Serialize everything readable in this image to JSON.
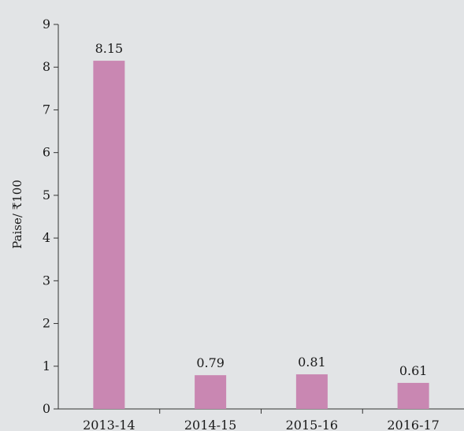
{
  "chart_data": {
    "type": "bar",
    "title": "",
    "xlabel": "",
    "ylabel": "Paise/ ₹100",
    "categories": [
      "2013-14",
      "2014-15",
      "2015-16",
      "2016-17"
    ],
    "values": [
      8.15,
      0.79,
      0.81,
      0.61
    ],
    "data_labels": [
      "8.15",
      "0.79",
      "0.81",
      "0.61"
    ],
    "ylim": [
      0,
      9
    ],
    "yticks": [
      "0",
      "1",
      "2",
      "3",
      "4",
      "5",
      "6",
      "7",
      "8",
      "9"
    ],
    "grid": false,
    "legend": "none",
    "bar_color": "#c987b2",
    "background_color": "#e2e4e6"
  }
}
